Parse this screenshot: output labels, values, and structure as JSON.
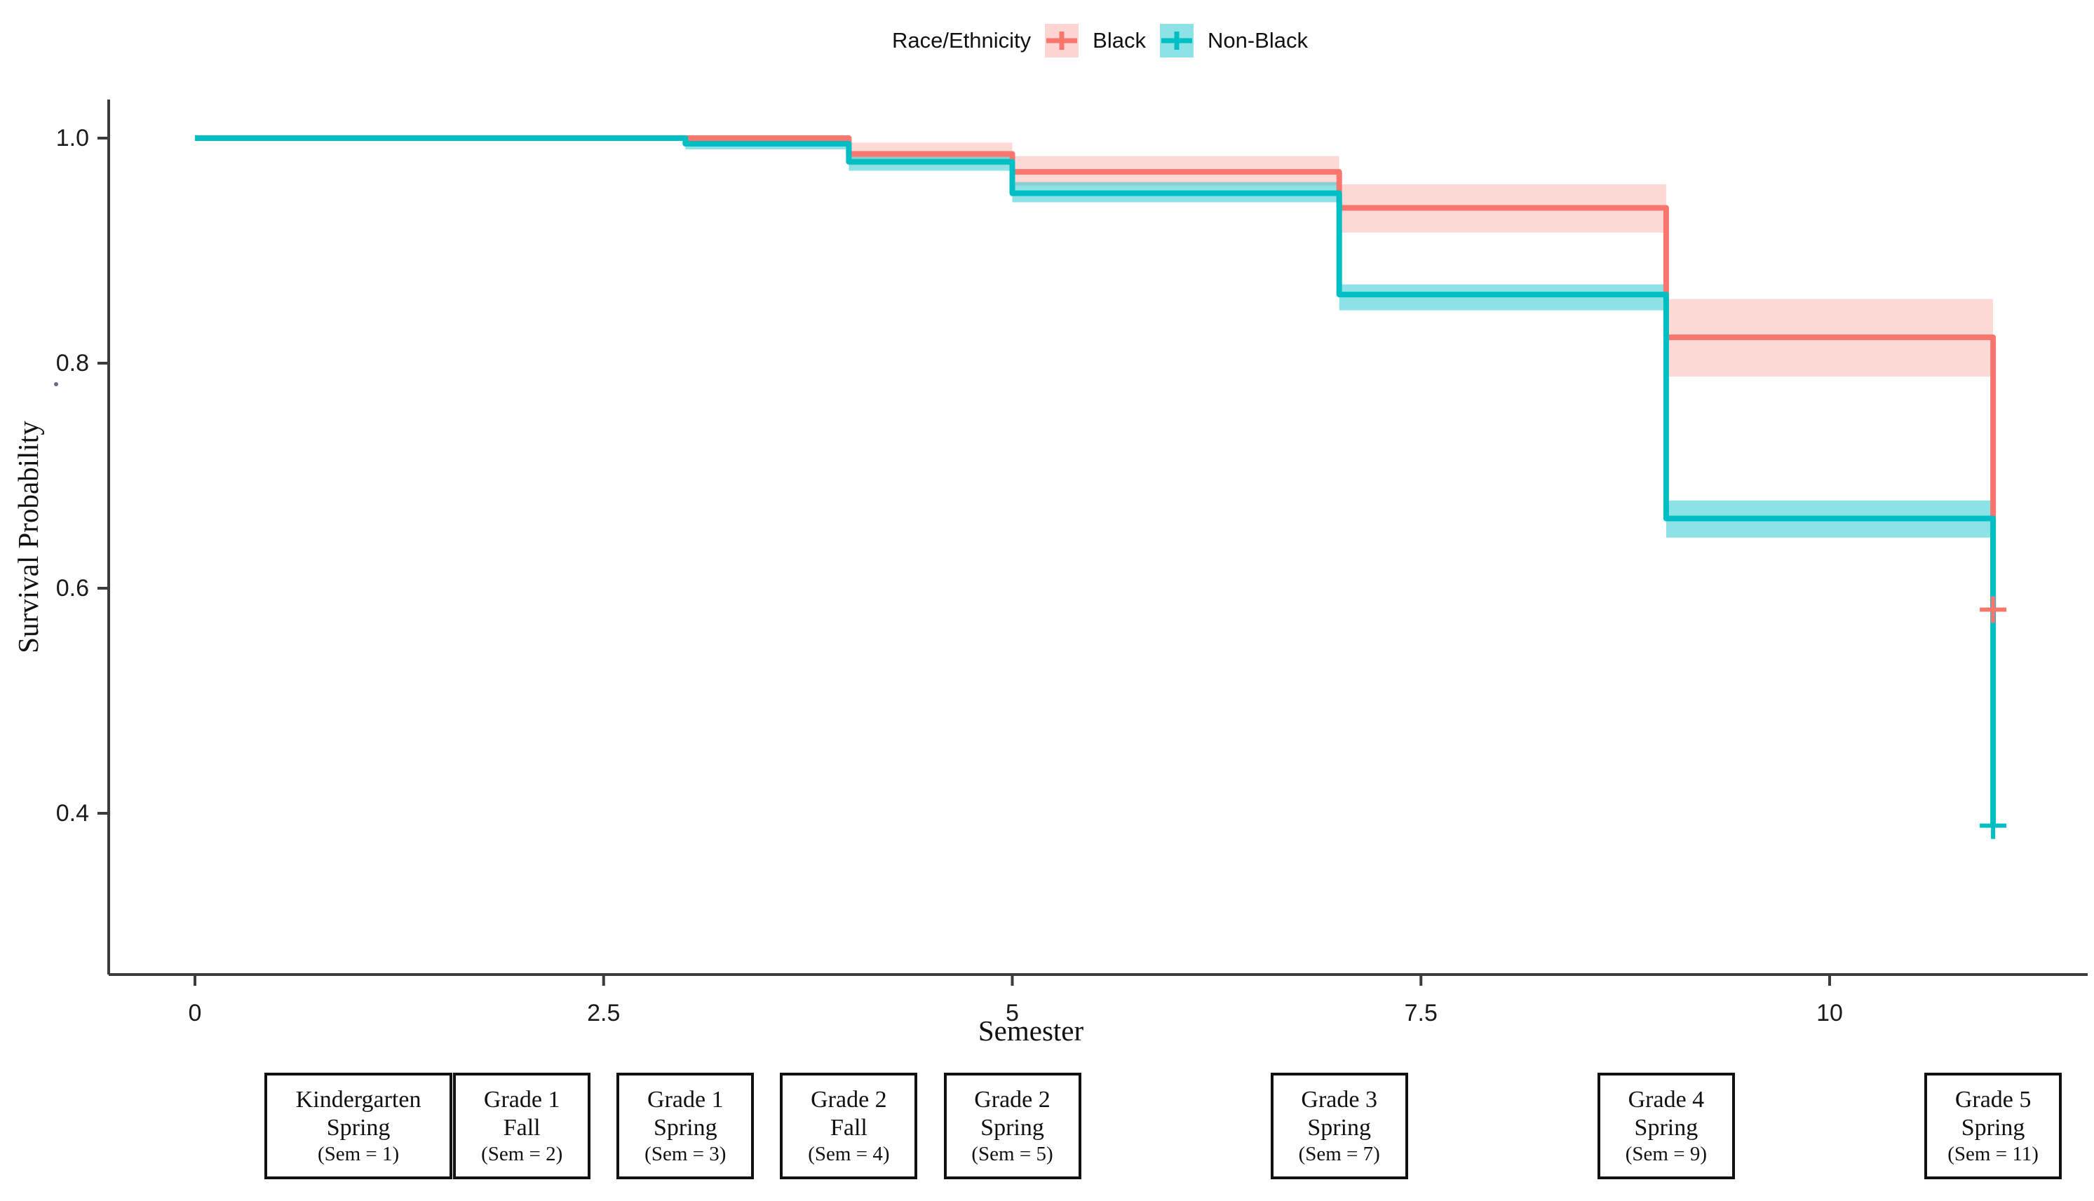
{
  "legend": {
    "title": "Race/Ethnicity",
    "items": [
      {
        "label": "Black",
        "color": "#F8766D",
        "fill": "rgba(248,118,109,0.30)",
        "glyph": "plus-censor-icon"
      },
      {
        "label": "Non-Black",
        "color": "#00BFC4",
        "fill": "rgba(0,191,196,0.45)",
        "glyph": "plus-censor-icon"
      }
    ]
  },
  "chart_data": {
    "type": "line",
    "subtype": "kaplan-meier-step-with-ci-ribbons",
    "title": "",
    "xlabel": "Semester",
    "ylabel": "Survival Probability",
    "legend_title": "Race/Ethnicity",
    "legend_position": "top-center",
    "grid": "off",
    "x_axis": {
      "range": [
        -0.53,
        11.6
      ],
      "ticks": [
        {
          "v": 0,
          "label": "0"
        },
        {
          "v": 2.5,
          "label": "2.5"
        },
        {
          "v": 5,
          "label": "5"
        },
        {
          "v": 7.5,
          "label": "7.5"
        },
        {
          "v": 10,
          "label": "10"
        }
      ]
    },
    "y_axis": {
      "range": [
        0.26,
        1.03
      ],
      "ticks": [
        {
          "v": 1.0,
          "label": "1.0"
        },
        {
          "v": 0.8,
          "label": "0.8"
        },
        {
          "v": 0.6,
          "label": "0.6"
        },
        {
          "v": 0.4,
          "label": "0.4"
        }
      ]
    },
    "series": [
      {
        "name": "Black",
        "color": "#F8766D",
        "band_color": "rgba(248,118,109,0.28)",
        "steps": [
          [
            0,
            1.0
          ],
          [
            4,
            0.986
          ],
          [
            5,
            0.97
          ],
          [
            7,
            0.938
          ],
          [
            9,
            0.823
          ],
          [
            11,
            0.581
          ]
        ],
        "censored_end": [
          11,
          0.581
        ],
        "ci_bands": [
          {
            "t0": 4,
            "t1": 5,
            "lo": 0.976,
            "hi": 0.996
          },
          {
            "t0": 5,
            "t1": 7,
            "lo": 0.958,
            "hi": 0.984
          },
          {
            "t0": 7,
            "t1": 9,
            "lo": 0.916,
            "hi": 0.959
          },
          {
            "t0": 9,
            "t1": 11,
            "lo": 0.788,
            "hi": 0.857
          }
        ]
      },
      {
        "name": "Non-Black",
        "color": "#00BFC4",
        "band_color": "rgba(0,191,196,0.45)",
        "steps": [
          [
            0,
            1.0
          ],
          [
            3,
            0.995
          ],
          [
            4,
            0.979
          ],
          [
            5,
            0.951
          ],
          [
            7,
            0.861
          ],
          [
            9,
            0.662
          ],
          [
            11,
            0.389
          ]
        ],
        "censored_end": [
          11,
          0.389
        ],
        "ci_bands": [
          {
            "t0": 3,
            "t1": 4,
            "lo": 0.99,
            "hi": 1.0
          },
          {
            "t0": 4,
            "t1": 5,
            "lo": 0.971,
            "hi": 0.987
          },
          {
            "t0": 5,
            "t1": 7,
            "lo": 0.943,
            "hi": 0.961
          },
          {
            "t0": 7,
            "t1": 9,
            "lo": 0.847,
            "hi": 0.87
          },
          {
            "t0": 9,
            "t1": 11,
            "lo": 0.645,
            "hi": 0.678
          }
        ]
      }
    ],
    "stage_boxes": [
      {
        "sem": 1,
        "line1": "Kindergarten",
        "line2": "Spring",
        "line3": "(Sem = 1)"
      },
      {
        "sem": 2,
        "line1": "Grade 1",
        "line2": "Fall",
        "line3": "(Sem = 2)"
      },
      {
        "sem": 3,
        "line1": "Grade 1",
        "line2": "Spring",
        "line3": "(Sem = 3)"
      },
      {
        "sem": 4,
        "line1": "Grade 2",
        "line2": "Fall",
        "line3": "(Sem = 4)"
      },
      {
        "sem": 5,
        "line1": "Grade 2",
        "line2": "Spring",
        "line3": "(Sem = 5)"
      },
      {
        "sem": 7,
        "line1": "Grade 3",
        "line2": "Spring",
        "line3": "(Sem = 7)"
      },
      {
        "sem": 9,
        "line1": "Grade 4",
        "line2": "Spring",
        "line3": "(Sem = 9)"
      },
      {
        "sem": 11,
        "line1": "Grade 5",
        "line2": "Spring",
        "line3": "(Sem = 11)"
      }
    ],
    "colors": {
      "black_series": "#F8766D",
      "nonblack_series": "#00BFC4",
      "axis": "#3c3c3c",
      "text": "#1a1a1a"
    }
  }
}
